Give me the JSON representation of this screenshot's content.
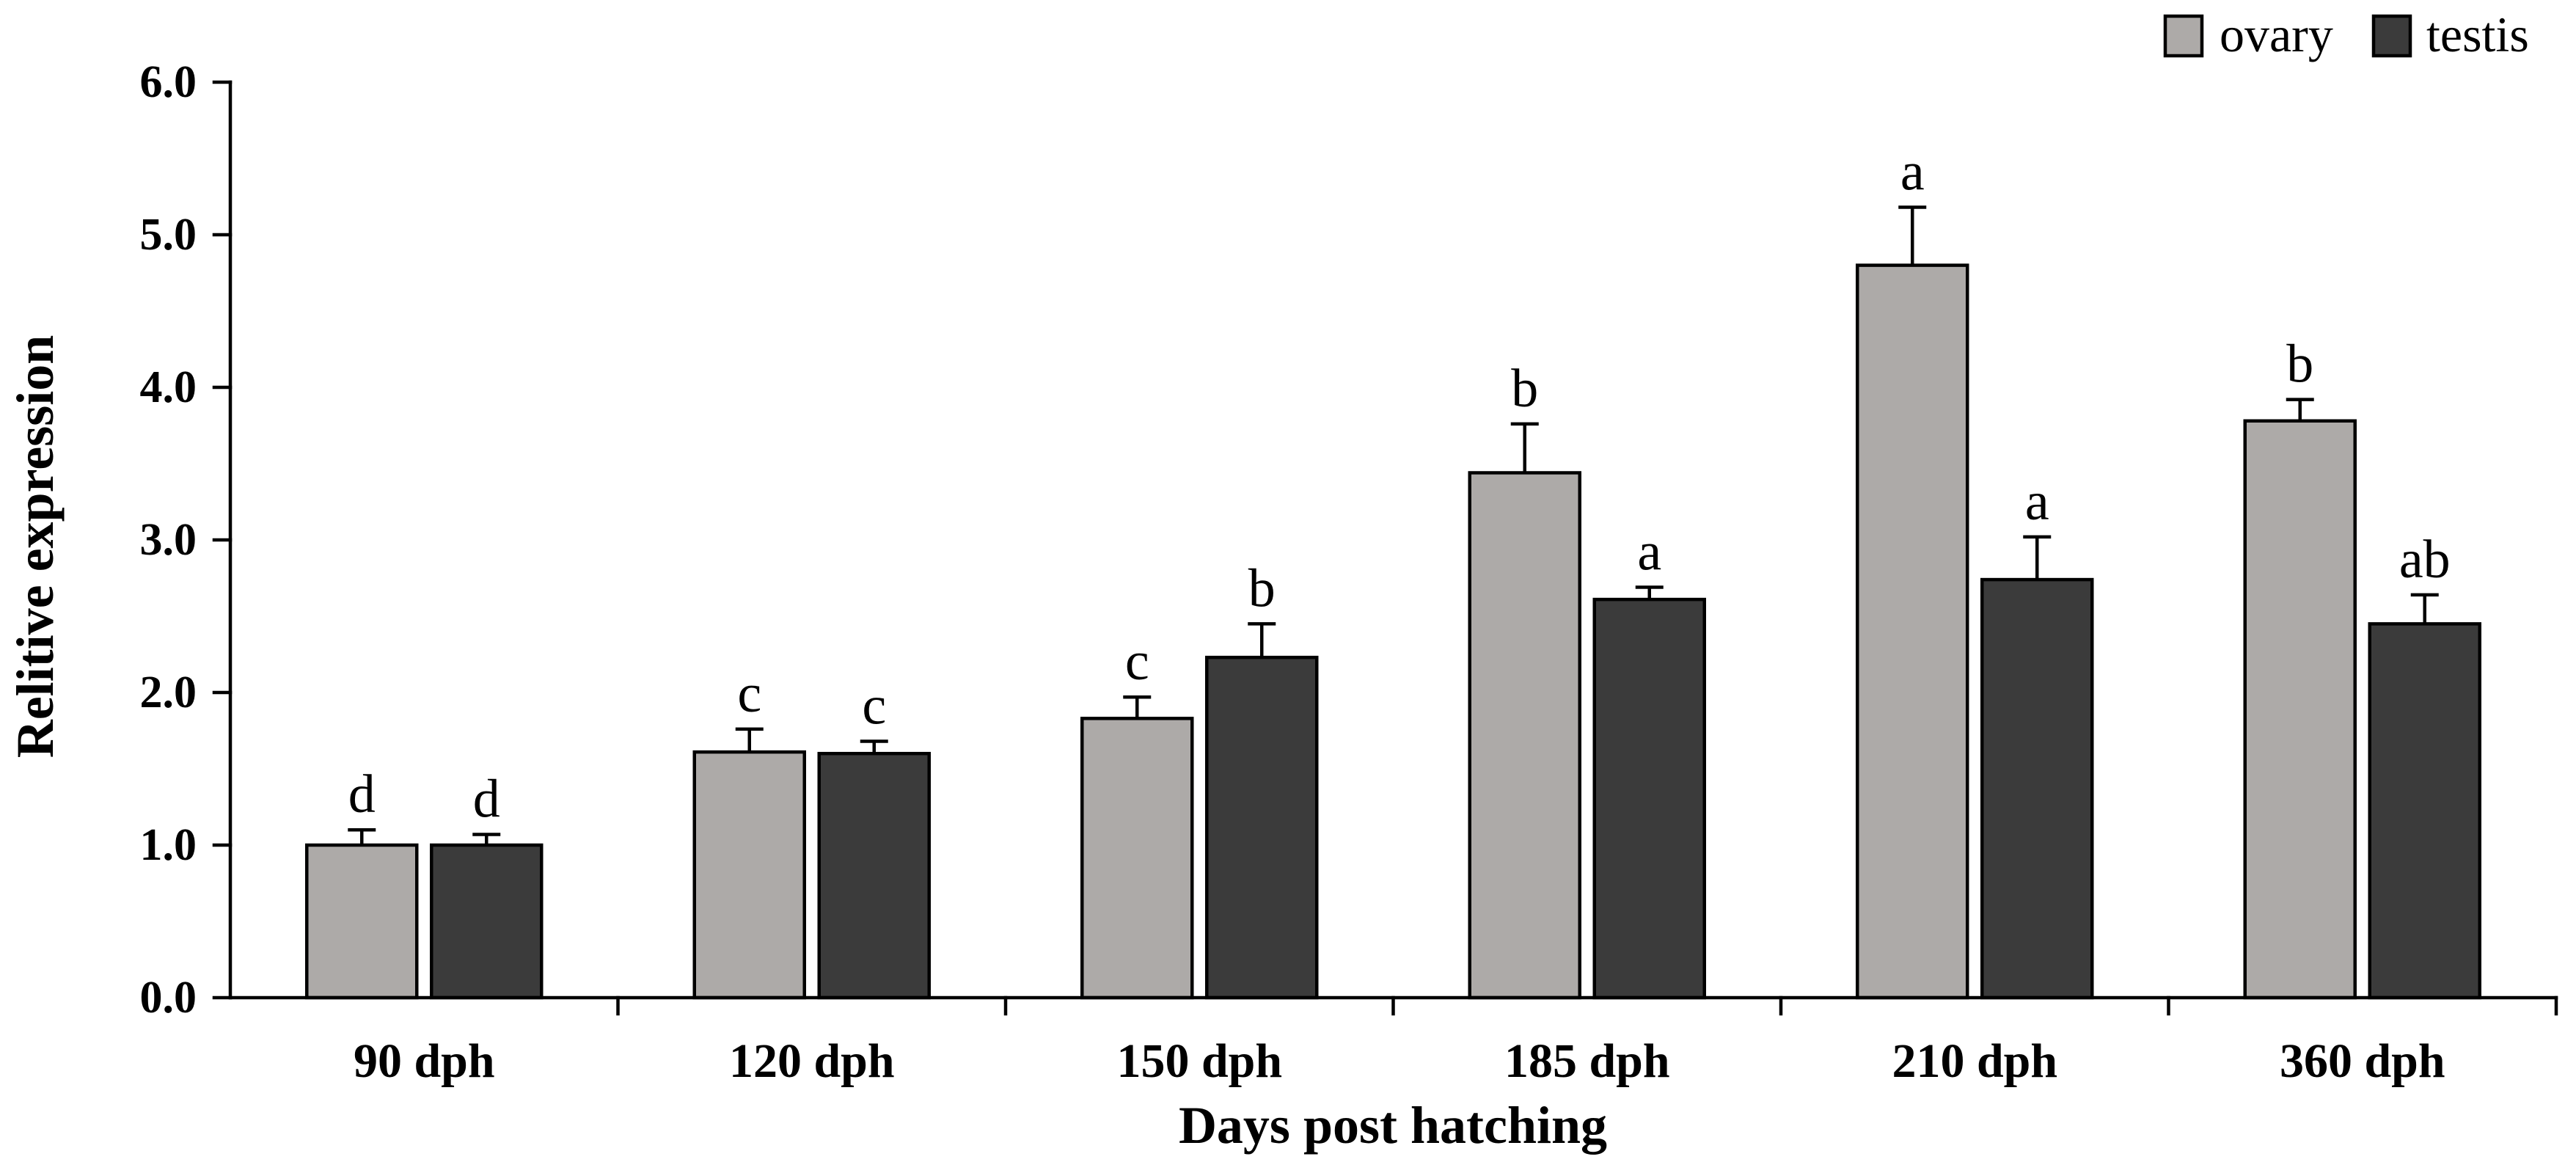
{
  "chart_data": {
    "type": "bar",
    "title": "",
    "xlabel": "Days post hatching",
    "ylabel": "Relitive expression",
    "ylim": [
      0,
      6
    ],
    "yticks": [
      "0.0",
      "1.0",
      "2.0",
      "3.0",
      "4.0",
      "5.0",
      "6.0"
    ],
    "grid": false,
    "legend": {
      "position": "top-right"
    },
    "categories": [
      "90 dph",
      "120 dph",
      "150 dph",
      "185 dph",
      "210 dph",
      "360 dph"
    ],
    "series": [
      {
        "name": "ovary",
        "color": "#adaaa8",
        "values": [
          1.0,
          1.61,
          1.83,
          3.44,
          4.8,
          3.78
        ],
        "errors": [
          0.1,
          0.15,
          0.14,
          0.32,
          0.38,
          0.14
        ],
        "significance": [
          "d",
          "c",
          "c",
          "b",
          "a",
          "b"
        ]
      },
      {
        "name": "testis",
        "color": "#3b3b3b",
        "values": [
          1.0,
          1.6,
          2.23,
          2.61,
          2.74,
          2.45
        ],
        "errors": [
          0.07,
          0.08,
          0.22,
          0.08,
          0.28,
          0.19
        ],
        "significance": [
          "d",
          "c",
          "b",
          "a",
          "a",
          "ab"
        ]
      }
    ]
  }
}
